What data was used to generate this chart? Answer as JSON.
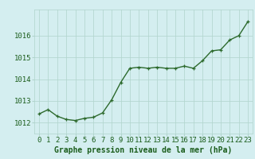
{
  "x": [
    0,
    1,
    2,
    3,
    4,
    5,
    6,
    7,
    8,
    9,
    10,
    11,
    12,
    13,
    14,
    15,
    16,
    17,
    18,
    19,
    20,
    21,
    22,
    23
  ],
  "y": [
    1012.4,
    1012.6,
    1012.3,
    1012.15,
    1012.1,
    1012.2,
    1012.25,
    1012.45,
    1013.05,
    1013.85,
    1014.5,
    1014.55,
    1014.5,
    1014.55,
    1014.5,
    1014.5,
    1014.6,
    1014.5,
    1014.85,
    1015.3,
    1015.35,
    1015.8,
    1016.0,
    1016.65
  ],
  "xlabel": "Graphe pression niveau de la mer (hPa)",
  "ylim": [
    1011.5,
    1017.2
  ],
  "yticks": [
    1012,
    1013,
    1014,
    1015,
    1016
  ],
  "xticks": [
    0,
    1,
    2,
    3,
    4,
    5,
    6,
    7,
    8,
    9,
    10,
    11,
    12,
    13,
    14,
    15,
    16,
    17,
    18,
    19,
    20,
    21,
    22,
    23
  ],
  "line_color": "#2d6a2d",
  "marker_color": "#2d6a2d",
  "bg_color": "#d4eef0",
  "grid_color": "#b0d4cc",
  "xlabel_color": "#1a5c1a",
  "xlabel_fontsize": 7.0,
  "tick_fontsize": 6.5,
  "linewidth": 1.0,
  "markersize": 3.0
}
